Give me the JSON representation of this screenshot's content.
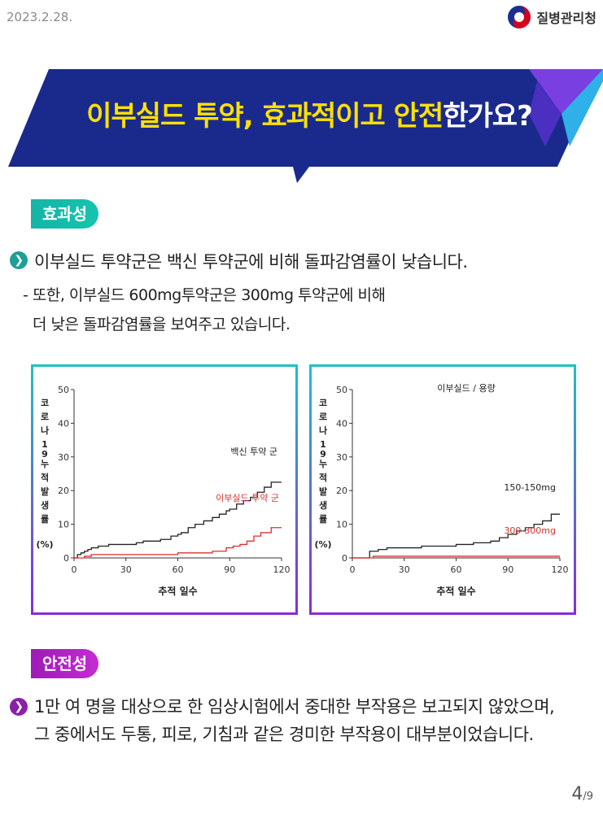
{
  "header": {
    "date": "2023.2.28.",
    "agency": "질병관리청",
    "logo_icon": "taegeuk-icon"
  },
  "banner": {
    "title_yellow": "이부실드 투약, 효과적이고 안전",
    "title_white": "한가요?"
  },
  "efficacy": {
    "label": "효과성",
    "bullet": "이부실드 투약군은 백신 투약군에 비해 돌파감염률이 낮습니다.",
    "sub_line1": "- 또한, 이부실드 600mg투약군은 300mg 투약군에 비해",
    "sub_line2": "더 낮은 돌파감염률을 보여주고 있습니다."
  },
  "chart_data": [
    {
      "type": "line",
      "title": "",
      "xlabel": "추적 일수",
      "ylabel": "코로나19 누적발생률 (%)",
      "xlim": [
        0,
        120
      ],
      "ylim": [
        0,
        50
      ],
      "xticks": [
        0,
        30,
        60,
        90,
        120
      ],
      "yticks": [
        0,
        10,
        20,
        30,
        40,
        50
      ],
      "series": [
        {
          "name": "백신 투약 군",
          "color": "#222222",
          "step": true,
          "x": [
            0,
            2,
            4,
            6,
            8,
            10,
            14,
            20,
            30,
            36,
            40,
            50,
            56,
            60,
            62,
            66,
            70,
            75,
            80,
            84,
            88,
            90,
            94,
            98,
            102,
            106,
            110,
            114,
            120
          ],
          "y": [
            0,
            1,
            1.5,
            2,
            2.5,
            3,
            3.5,
            4,
            4,
            4.5,
            5,
            5.5,
            6.5,
            7,
            7.5,
            9,
            10,
            11,
            12,
            13,
            14,
            14.5,
            16,
            17,
            18,
            19.5,
            21,
            22.5,
            22.5
          ]
        },
        {
          "name": "이부실드 투약 군",
          "color": "#d83030",
          "step": true,
          "x": [
            0,
            6,
            10,
            30,
            60,
            75,
            80,
            88,
            92,
            96,
            100,
            104,
            108,
            114,
            120
          ],
          "y": [
            0,
            0.5,
            1,
            1,
            1.5,
            1.5,
            2,
            3,
            3.5,
            4,
            5,
            6.5,
            7.5,
            9,
            9
          ]
        }
      ]
    },
    {
      "type": "line",
      "title": "이부실드 / 용량",
      "xlabel": "추적 일수",
      "ylabel": "코로나19 누적발생률 (%)",
      "xlim": [
        0,
        120
      ],
      "ylim": [
        0,
        50
      ],
      "xticks": [
        0,
        30,
        60,
        90,
        120
      ],
      "yticks": [
        0,
        10,
        20,
        30,
        40,
        50
      ],
      "series": [
        {
          "name": "150-150mg",
          "color": "#222222",
          "step": true,
          "x": [
            0,
            8,
            10,
            15,
            20,
            30,
            40,
            60,
            70,
            80,
            85,
            90,
            95,
            100,
            105,
            110,
            115,
            120
          ],
          "y": [
            0,
            0,
            2,
            2.5,
            3,
            3,
            3.5,
            4,
            4.5,
            5,
            6,
            7,
            8,
            9,
            10,
            11,
            13,
            13
          ]
        },
        {
          "name": "300-300mg",
          "color": "#d83030",
          "step": true,
          "x": [
            0,
            10,
            12,
            120
          ],
          "y": [
            0,
            0,
            0.5,
            0.5
          ]
        }
      ]
    }
  ],
  "safety": {
    "label": "안전성",
    "bullet_line1": "1만 여 명을 대상으로 한 임상시험에서 중대한 부작용은 보고되지 않았으며,",
    "bullet_line2": "그 중에서도 두통, 피로, 기침과 같은 경미한 부작용이 대부분이었습니다."
  },
  "pagination": {
    "current": "4",
    "total": "/9"
  },
  "colors": {
    "banner": "#1a2a8c",
    "accent_yellow": "#ffe100",
    "teal": "#16b8aa",
    "purple": "#a51dbc"
  }
}
